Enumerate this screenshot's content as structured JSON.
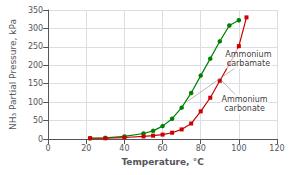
{
  "chart_data": {
    "type": "line",
    "xlabel": "Temperature, °C",
    "ylabel": "NH₃ Partial Pressure, kPa",
    "xlim": [
      0,
      120
    ],
    "ylim": [
      0,
      350
    ],
    "xticks": [
      0,
      20,
      40,
      60,
      80,
      100,
      120
    ],
    "yticks": [
      0,
      50,
      100,
      150,
      200,
      250,
      300,
      350
    ],
    "grid": true,
    "series": [
      {
        "color": "#008000",
        "marker": "circle",
        "x": [
          22,
          30,
          40,
          50,
          55,
          60,
          65,
          70,
          75,
          80,
          85,
          90,
          95,
          100
        ],
        "values": [
          2,
          3,
          7,
          15,
          22,
          35,
          55,
          85,
          125,
          172,
          218,
          265,
          308,
          322
        ]
      },
      {
        "color": "#cc0000",
        "marker": "square",
        "x": [
          22,
          30,
          40,
          50,
          55,
          60,
          65,
          70,
          75,
          80,
          85,
          90,
          95,
          100,
          104
        ],
        "values": [
          2,
          2,
          4,
          7,
          9,
          12,
          17,
          26,
          42,
          75,
          112,
          158,
          203,
          252,
          330
        ]
      }
    ],
    "annotations": [
      {
        "text": "Ammonium\ncarbamate",
        "xy": [
          73,
          102
        ],
        "xytext": [
          105,
          218
        ]
      },
      {
        "text": "Ammonium\ncarbonate",
        "xy": [
          91,
          158
        ],
        "xytext": [
          103,
          95
        ]
      }
    ]
  }
}
